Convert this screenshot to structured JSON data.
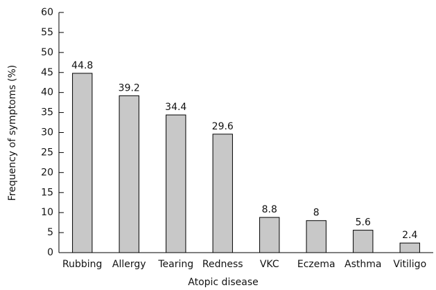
{
  "chart_data": {
    "type": "bar",
    "x_label": "Atopic disease",
    "y_label": "Frequency of symptoms (%)",
    "categories": [
      "Rubbing",
      "Allergy",
      "Tearing",
      "Redness",
      "VKC",
      "Eczema",
      "Asthma",
      "Vitiligo"
    ],
    "values": [
      44.8,
      39.2,
      34.4,
      29.6,
      8.8,
      8,
      5.6,
      2.4
    ],
    "color": "#c8c8c8",
    "edge_color": "#000000",
    "ylim": [
      0,
      60
    ],
    "yticks": [
      0,
      5,
      10,
      15,
      20,
      25,
      30,
      35,
      40,
      45,
      50,
      55,
      60
    ],
    "grid": false
  }
}
